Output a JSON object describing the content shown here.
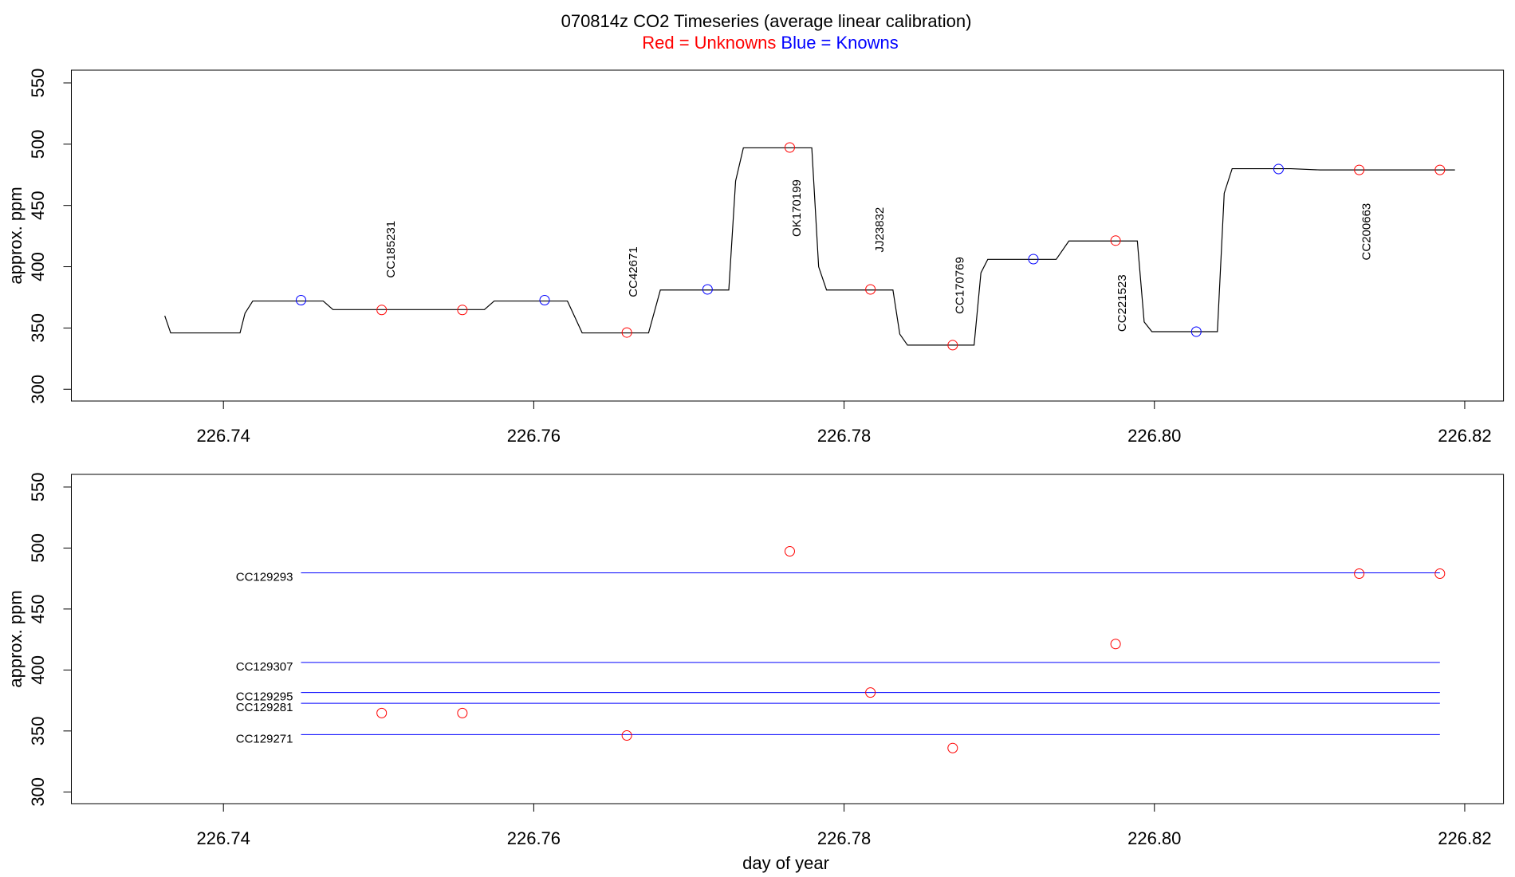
{
  "chart_data": [
    {
      "type": "line",
      "title": "070814z   CO2 Timeseries (average linear calibration)",
      "legend": [
        {
          "text": "Red = Unknowns",
          "color": "#ff0000"
        },
        {
          "text": "Blue = Knowns",
          "color": "#0000ff"
        }
      ],
      "ylabel": "approx. ppm",
      "xlim": [
        226.7302,
        226.8225
      ],
      "ylim": [
        290.4,
        560.4
      ],
      "xticks": [
        226.74,
        226.76,
        226.78,
        {
          "value": 226.8,
          "label": "226.80"
        },
        226.82
      ],
      "yticks": [
        300,
        350,
        400,
        450,
        500,
        550
      ],
      "line": {
        "color": "#000000",
        "x": [
          226.73622,
          226.7366,
          226.74107,
          226.74139,
          226.74189,
          226.74643,
          226.74706,
          226.75682,
          226.75745,
          226.76217,
          226.76312,
          226.7674,
          226.76816,
          226.77257,
          226.77301,
          226.77351,
          226.77792,
          226.77836,
          226.77887,
          226.78315,
          226.78359,
          226.78409,
          226.78838,
          226.78882,
          226.78926,
          226.79367,
          226.79449,
          226.7989,
          226.79934,
          226.79984,
          226.80406,
          226.8045,
          226.80501,
          226.80879,
          226.81068,
          226.81937
        ],
        "y": [
          360,
          346,
          346,
          362,
          372,
          372,
          365,
          365,
          372,
          372,
          346,
          346,
          381,
          381,
          470,
          497,
          497,
          400,
          381,
          381,
          345,
          336,
          336,
          395,
          406,
          406,
          421,
          421,
          355,
          347,
          347,
          460,
          480,
          480,
          479,
          479
        ]
      },
      "points": [
        {
          "color": "#0000ff",
          "x": [
            226.745,
            226.7607,
            226.7712,
            226.7922,
            226.8027,
            226.808
          ],
          "y": [
            372.7,
            372.7,
            381.5,
            406.2,
            347,
            479.7
          ]
        },
        {
          "color": "#ff0000",
          "x": [
            226.7502,
            226.7554,
            226.766,
            226.7765,
            226.7817,
            226.787,
            226.7975,
            226.8132,
            226.8184
          ],
          "y": [
            364.7,
            364.7,
            346.3,
            497.3,
            381.5,
            336,
            421.3,
            479,
            479
          ]
        }
      ],
      "annotation_color": "#ff0000",
      "annotations": [
        {
          "text": "CC185231",
          "x": 226.75083,
          "y": 414.2
        },
        {
          "text": "CC42671",
          "x": 226.76646,
          "y": 395.8
        },
        {
          "text": "OK170199",
          "x": 226.77698,
          "y": 447.8
        },
        {
          "text": "JJ23832",
          "x": 226.78233,
          "y": 430.2
        },
        {
          "text": "CC170769",
          "x": 226.7875,
          "y": 384.7
        },
        {
          "text": "CC221523",
          "x": 226.79795,
          "y": 370.3
        },
        {
          "text": "CC200663",
          "x": 226.8137,
          "y": 428.6
        }
      ]
    },
    {
      "type": "scatter",
      "ylabel": "approx. ppm",
      "xlabel": "day of year",
      "xlim": [
        226.7302,
        226.8225
      ],
      "ylim": [
        290.4,
        560.4
      ],
      "xticks": [
        226.74,
        226.76,
        226.78,
        {
          "value": 226.8,
          "label": "226.80"
        },
        226.82
      ],
      "yticks": [
        300,
        350,
        400,
        450,
        500,
        550
      ],
      "points": [
        {
          "color": "#ff0000",
          "x": [
            226.7502,
            226.7554,
            226.766,
            226.7765,
            226.7817,
            226.787,
            226.7975,
            226.8132,
            226.8184
          ],
          "y": [
            364.7,
            364.7,
            346.3,
            497.3,
            381.5,
            336,
            421.3,
            479,
            479
          ]
        }
      ],
      "reference_lines": {
        "color": "#0000ff",
        "x_span": [
          226.745,
          226.8184
        ],
        "labels": [
          "CC129293",
          "CC129307",
          "CC129295",
          "CC129281",
          "CC129271"
        ],
        "values": [
          479.7,
          406.2,
          381.5,
          372.7,
          347
        ]
      }
    }
  ]
}
